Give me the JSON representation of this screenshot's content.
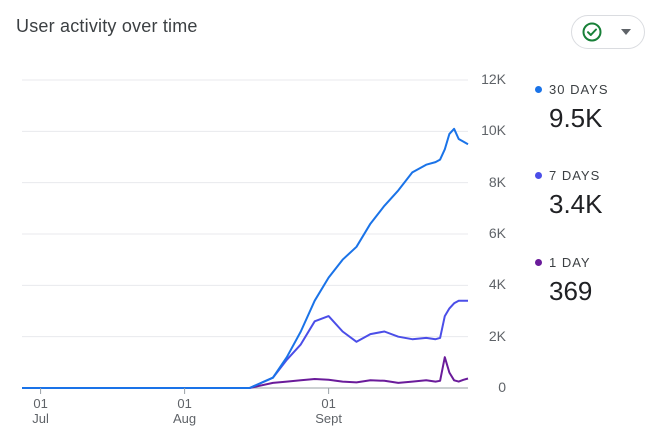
{
  "header": {
    "title": "User activity over time"
  },
  "status_button": {
    "icon": "check-circle-icon",
    "caret_icon": "caret-down-icon"
  },
  "colors": {
    "series_30": "#1a73e8",
    "series_7": "#4b4ee8",
    "series_1": "#6a1b9a",
    "check": "#188038"
  },
  "legend": [
    {
      "label": "30 DAYS",
      "value": "9.5K",
      "color": "#1a73e8"
    },
    {
      "label": "7 DAYS",
      "value": "3.4K",
      "color": "#4b4ee8"
    },
    {
      "label": "1 DAY",
      "value": "369",
      "color": "#6a1b9a"
    }
  ],
  "chart_data": {
    "type": "line",
    "title": "User activity over time",
    "xlabel": "",
    "ylabel": "",
    "ylim": [
      0,
      12000
    ],
    "grid": true,
    "legend_placement": "right",
    "y_ticks": [
      "0",
      "2K",
      "4K",
      "6K",
      "8K",
      "10K",
      "12K"
    ],
    "x_ticks": [
      {
        "day": "01",
        "month": "Jul",
        "date": "2023-07-01"
      },
      {
        "day": "01",
        "month": "Aug",
        "date": "2023-08-01"
      },
      {
        "day": "01",
        "month": "Sept",
        "date": "2023-09-01"
      }
    ],
    "x": [
      "2023-06-27",
      "2023-07-05",
      "2023-07-15",
      "2023-07-25",
      "2023-08-05",
      "2023-08-15",
      "2023-08-20",
      "2023-08-23",
      "2023-08-26",
      "2023-08-29",
      "2023-09-01",
      "2023-09-04",
      "2023-09-07",
      "2023-09-10",
      "2023-09-13",
      "2023-09-16",
      "2023-09-19",
      "2023-09-22",
      "2023-09-24",
      "2023-09-25",
      "2023-09-26",
      "2023-09-27",
      "2023-09-28",
      "2023-09-29",
      "2023-09-30",
      "2023-10-01"
    ],
    "series": [
      {
        "name": "30 DAYS",
        "values": [
          0,
          0,
          0,
          0,
          0,
          0,
          400,
          1200,
          2200,
          3400,
          4300,
          5000,
          5500,
          6400,
          7100,
          7700,
          8400,
          8700,
          8800,
          8900,
          9300,
          9900,
          10100,
          9700,
          9600,
          9500
        ]
      },
      {
        "name": "7 DAYS",
        "values": [
          0,
          0,
          0,
          0,
          0,
          0,
          400,
          1100,
          1700,
          2600,
          2800,
          2200,
          1800,
          2100,
          2200,
          2000,
          1900,
          1950,
          1900,
          1950,
          2800,
          3100,
          3300,
          3400,
          3400,
          3400
        ]
      },
      {
        "name": "1 DAY",
        "values": [
          0,
          0,
          0,
          0,
          0,
          0,
          200,
          250,
          300,
          350,
          320,
          250,
          220,
          300,
          280,
          200,
          250,
          300,
          250,
          280,
          1200,
          600,
          300,
          250,
          320,
          369
        ]
      }
    ]
  }
}
